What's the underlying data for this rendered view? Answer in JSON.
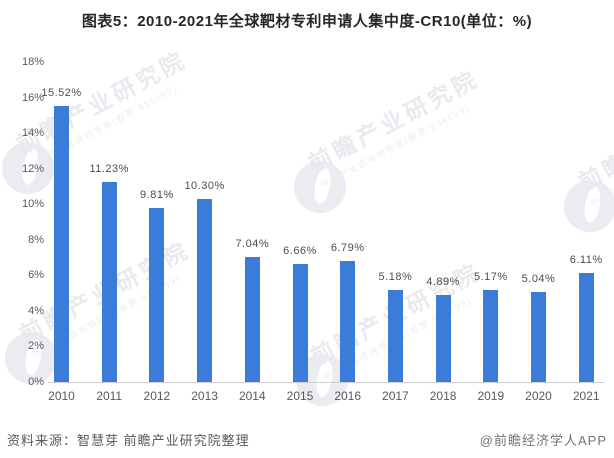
{
  "title": "图表5：2010-2021年全球靶材专利申请人集中度-CR10(单位：%)",
  "chart_data": {
    "type": "bar",
    "title": "图表5：2010-2021年全球靶材专利申请人集中度-CR10(单位：%)",
    "categories": [
      "2010",
      "2011",
      "2012",
      "2013",
      "2014",
      "2015",
      "2016",
      "2017",
      "2018",
      "2019",
      "2020",
      "2021"
    ],
    "values": [
      15.52,
      11.23,
      9.81,
      10.3,
      7.04,
      6.66,
      6.79,
      5.18,
      4.89,
      5.17,
      5.04,
      6.11
    ],
    "value_labels": [
      "15.52%",
      "11.23%",
      "9.81%",
      "10.30%",
      "7.04%",
      "6.66%",
      "6.79%",
      "5.18%",
      "4.89%",
      "5.17%",
      "5.04%",
      "6.11%"
    ],
    "xlabel": "",
    "ylabel": "",
    "ylim": [
      0,
      18
    ],
    "ytick_values": [
      0,
      2,
      4,
      6,
      8,
      10,
      12,
      14,
      16,
      18
    ],
    "ytick_labels": [
      "0%",
      "2%",
      "4%",
      "6%",
      "8%",
      "10%",
      "12%",
      "14%",
      "16%",
      "18%"
    ],
    "grid": false,
    "legend": null,
    "bar_color": "#3A7CD8"
  },
  "watermark": {
    "brand": "前瞻产业研究院",
    "tagline": "中国产业咨询领导者(股票:839599)"
  },
  "footer": {
    "source": "资料来源：智慧芽 前瞻产业研究院整理",
    "credit": "@前瞻经济学人APP"
  }
}
